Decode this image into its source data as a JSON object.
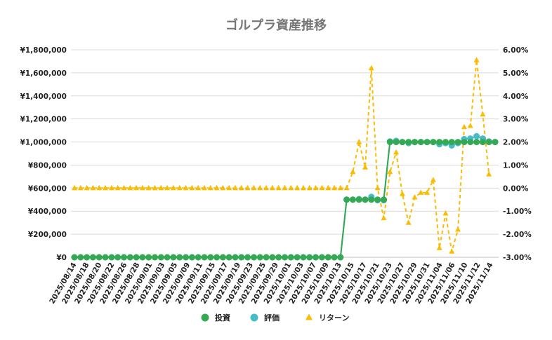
{
  "chart_data": {
    "type": "line",
    "title": "ゴルプラ資産推移",
    "x_tick_labels": [
      "2025/08/14",
      "2025/08/18",
      "2025/08/20",
      "2025/08/22",
      "2025/08/26",
      "2025/08/28",
      "2025/09/01",
      "2025/09/03",
      "2025/09/05",
      "2025/09/09",
      "2025/09/11",
      "2025/09/15",
      "2025/09/17",
      "2025/09/19",
      "2025/09/23",
      "2025/09/25",
      "2025/09/29",
      "2025/10/01",
      "2025/10/03",
      "2025/10/07",
      "2025/10/09",
      "2025/10/13",
      "2025/10/15",
      "2025/10/17",
      "2025/10/21",
      "2025/10/23",
      "2025/10/27",
      "2025/10/29",
      "2025/10/31",
      "2025/11/04",
      "2025/11/06",
      "2025/11/10",
      "2025/11/12",
      "2025/11/14"
    ],
    "y_left": {
      "min": 0,
      "max": 1800000,
      "ticks": [
        "¥0",
        "¥200,000",
        "¥400,000",
        "¥600,000",
        "¥800,000",
        "¥1,000,000",
        "¥1,200,000",
        "¥1,400,000",
        "¥1,600,000",
        "¥1,800,000"
      ]
    },
    "y_right": {
      "min": -3.0,
      "max": 6.0,
      "ticks": [
        "-3.00%",
        "-2.00%",
        "-1.00%",
        "0.00%",
        "1.00%",
        "2.00%",
        "3.00%",
        "4.00%",
        "5.00%",
        "6.00%"
      ]
    },
    "grid": true,
    "legend_position": "bottom",
    "series": [
      {
        "name": "投資",
        "axis": "left",
        "color": "#34a853",
        "marker": "circle",
        "dashed": false,
        "values": [
          0,
          0,
          0,
          0,
          0,
          0,
          0,
          0,
          0,
          0,
          0,
          0,
          0,
          0,
          0,
          0,
          0,
          0,
          0,
          0,
          0,
          0,
          0,
          0,
          0,
          0,
          0,
          0,
          0,
          0,
          0,
          0,
          0,
          0,
          0,
          0,
          0,
          0,
          0,
          0,
          0,
          0,
          0,
          0,
          500000,
          500000,
          500000,
          500000,
          500000,
          500000,
          500000,
          1000000,
          1000000,
          1000000,
          1000000,
          1000000,
          1000000,
          1000000,
          1000000,
          1000000,
          1000000,
          1000000,
          1000000,
          1000000,
          1000000,
          1000000,
          1000000,
          1000000,
          1000000
        ]
      },
      {
        "name": "評価",
        "axis": "left",
        "color": "#46bdc6",
        "marker": "circle",
        "dashed": false,
        "values": [
          0,
          0,
          0,
          0,
          0,
          0,
          0,
          0,
          0,
          0,
          0,
          0,
          0,
          0,
          0,
          0,
          0,
          0,
          0,
          0,
          0,
          0,
          0,
          0,
          0,
          0,
          0,
          0,
          0,
          0,
          0,
          0,
          0,
          0,
          0,
          0,
          0,
          0,
          0,
          0,
          0,
          0,
          0,
          0,
          500000,
          500000,
          505000,
          500000,
          525000,
          495000,
          495000,
          1005000,
          1010000,
          1000000,
          990000,
          1000000,
          1000000,
          1000000,
          1000000,
          980000,
          990000,
          970000,
          990000,
          1025000,
          1030000,
          1050000,
          1030000,
          1005000,
          1000000
        ]
      },
      {
        "name": "リターン",
        "axis": "right",
        "color": "#fbbc04",
        "marker": "triangle",
        "dashed": true,
        "values": [
          0,
          0,
          0,
          0,
          0,
          0,
          0,
          0,
          0,
          0,
          0,
          0,
          0,
          0,
          0,
          0,
          0,
          0,
          0,
          0,
          0,
          0,
          0,
          0,
          0,
          0,
          0,
          0,
          0,
          0,
          0,
          0,
          0,
          0,
          0,
          0,
          0,
          0,
          0,
          0,
          0,
          0,
          0,
          0,
          0,
          0.7,
          2.0,
          0.9,
          5.2,
          0.0,
          -1.3,
          0.7,
          1.55,
          -0.25,
          -1.5,
          -0.4,
          -0.2,
          -0.2,
          0.35,
          -2.6,
          -1.1,
          -2.75,
          -1.8,
          2.65,
          2.7,
          5.55,
          3.2,
          0.6
        ]
      }
    ]
  }
}
